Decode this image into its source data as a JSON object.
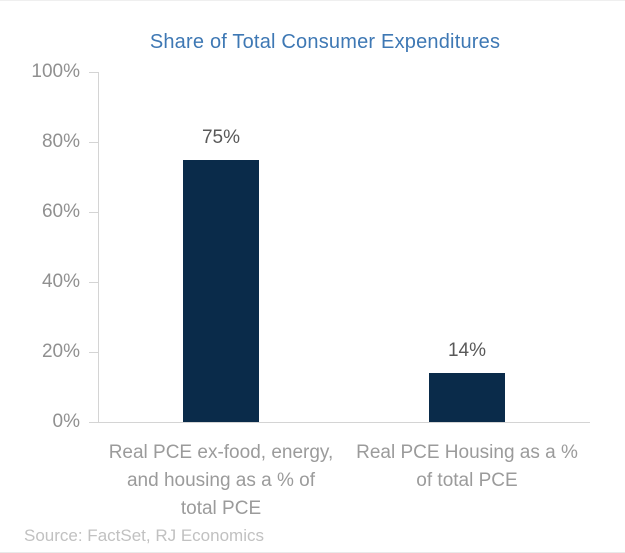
{
  "title": "Share of Total Consumer Expenditures",
  "source": "Source: FactSet, RJ Economics",
  "chart_data": {
    "type": "bar",
    "title": "Share of Total Consumer Expenditures",
    "categories": [
      "Real PCE ex-food, energy,\nand housing as a % of\ntotal PCE",
      "Real PCE Housing as a %\nof total PCE"
    ],
    "values": [
      75,
      14
    ],
    "value_labels": [
      "75%",
      "14%"
    ],
    "xlabel": "",
    "ylabel": "",
    "ylim": [
      0,
      100
    ],
    "ytick_values": [
      0,
      20,
      40,
      60,
      80,
      100
    ],
    "ytick_labels": [
      "0%",
      "20%",
      "40%",
      "60%",
      "80%",
      "100%"
    ],
    "grid": false,
    "legend": false,
    "source": "Source: FactSet, RJ Economics",
    "colors": {
      "title": "#3e78b4",
      "bar": "#0a2b4a",
      "tick_label": "#909090",
      "value_label": "#595959",
      "category_label": "#9b9b9b",
      "source": "#c1c1c1",
      "axis_line": "#d4d4d4"
    }
  }
}
